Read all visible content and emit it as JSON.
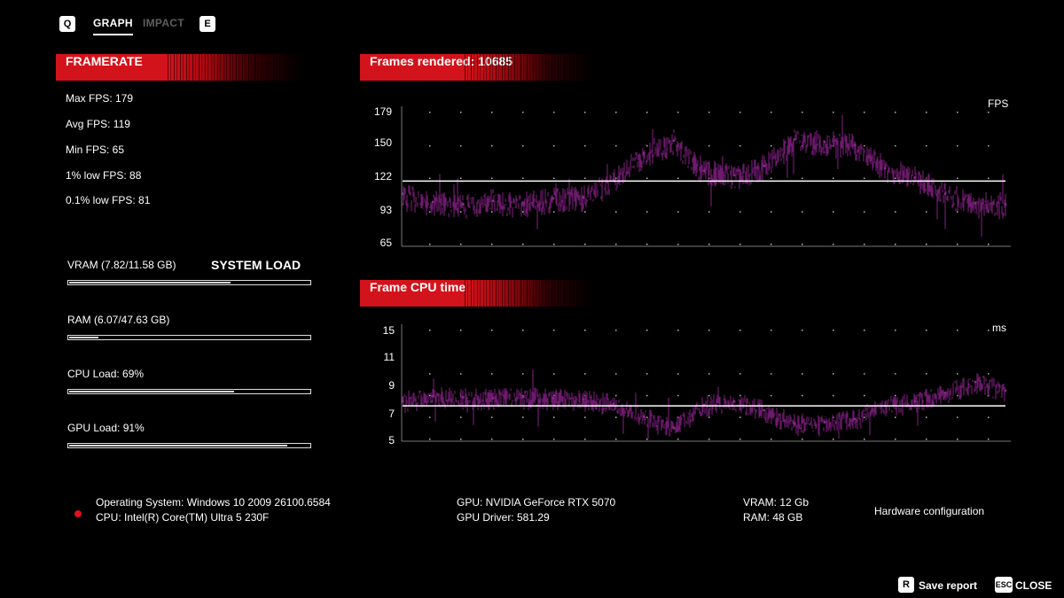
{
  "tabs": {
    "left_key": "Q",
    "right_key": "E",
    "items": [
      {
        "label": "GRAPH",
        "active": true
      },
      {
        "label": "IMPACT",
        "active": false
      }
    ]
  },
  "framerate": {
    "title": "FRAMERATE",
    "stats": [
      "Max FPS: 179",
      "Avg FPS: 119",
      "Min FPS: 65",
      "1% low FPS: 88",
      "0.1% low FPS: 81"
    ]
  },
  "system_load": {
    "title": "SYSTEM LOAD",
    "items": [
      {
        "label": "VRAM (7.82/11.58 GB)",
        "fraction": 0.675
      },
      {
        "label": "RAM (6.07/47.63 GB)",
        "fraction": 0.127
      },
      {
        "label": "CPU Load: 69%",
        "fraction": 0.69
      },
      {
        "label": "GPU Load: 91%",
        "fraction": 0.91
      }
    ]
  },
  "chart_data": [
    {
      "type": "area",
      "title": "Frames rendered: 10685",
      "unit": "FPS",
      "y_ticks": [
        "179",
        "150",
        "122",
        "93",
        "65"
      ],
      "ylim": [
        65,
        179
      ],
      "average_line": 119,
      "color": "#6e1a6e",
      "x": [
        0,
        5,
        10,
        15,
        20,
        25,
        30,
        35,
        40,
        45,
        50,
        55,
        60,
        65,
        70,
        75,
        80,
        85,
        90,
        95,
        100
      ],
      "values": [
        108,
        101,
        99,
        102,
        100,
        104,
        105,
        120,
        143,
        154,
        128,
        124,
        132,
        155,
        153,
        150,
        130,
        122,
        108,
        100,
        99
      ]
    },
    {
      "type": "area",
      "title": "Frame CPU time",
      "unit": "ms",
      "y_ticks": [
        "15",
        "11",
        "9",
        "7",
        "5"
      ],
      "ylim": [
        5,
        15
      ],
      "average_line": 8,
      "color": "#6e1a6e",
      "x": [
        0,
        5,
        10,
        15,
        20,
        25,
        30,
        35,
        40,
        45,
        50,
        55,
        60,
        65,
        70,
        75,
        80,
        85,
        90,
        95,
        100
      ],
      "values": [
        8.4,
        8.9,
        8.8,
        8.7,
        8.8,
        8.7,
        8.6,
        8.2,
        7.0,
        6.0,
        8.1,
        8.4,
        7.6,
        6.4,
        6.5,
        6.8,
        8.0,
        8.4,
        9.2,
        10.2,
        9.4
      ]
    }
  ],
  "hardware": {
    "os": "Operating System: Windows 10 2009 26100.6584",
    "cpu": "CPU: Intel(R) Core(TM) Ultra 5 230F",
    "gpu": "GPU: NVIDIA GeForce RTX 5070",
    "gpu_driver": "GPU Driver: 581.29",
    "vram": "VRAM: 12 Gb",
    "ram": "RAM: 48 GB",
    "config_label": "Hardware configuration",
    "status_color": "#e0101a"
  },
  "footer": {
    "save_key": "R",
    "save_label": "Save report",
    "close_key": "ESC",
    "close_label": "CLOSE"
  }
}
